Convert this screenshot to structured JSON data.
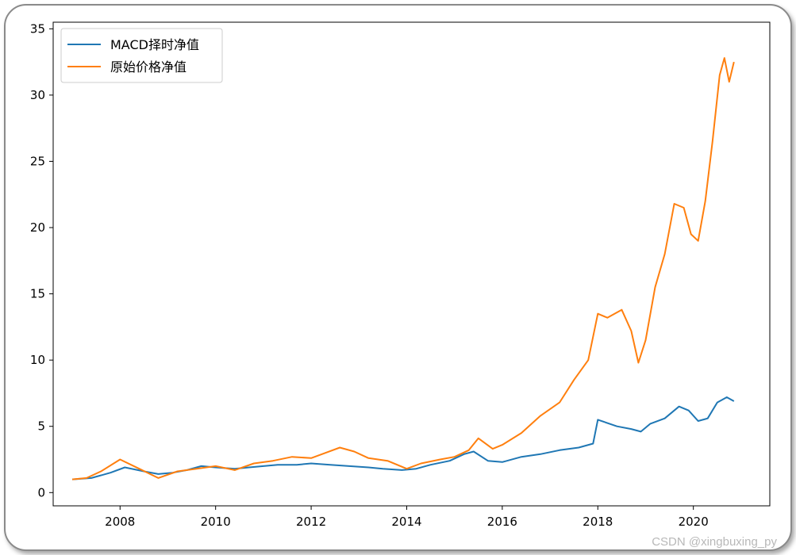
{
  "chart_data": {
    "type": "line",
    "title": "",
    "xlabel": "",
    "ylabel": "",
    "xlim": [
      2006.6,
      2021.6
    ],
    "ylim": [
      -1.0,
      35.5
    ],
    "xticks": [
      2008,
      2010,
      2012,
      2014,
      2016,
      2018,
      2020
    ],
    "xtick_labels": [
      "2008",
      "2010",
      "2012",
      "2014",
      "2016",
      "2018",
      "2020"
    ],
    "yticks": [
      0,
      5,
      10,
      15,
      20,
      25,
      30,
      35
    ],
    "ytick_labels": [
      "0",
      "5",
      "10",
      "15",
      "20",
      "25",
      "30",
      "35"
    ],
    "grid": false,
    "legend_position": "upper left",
    "series": [
      {
        "name": "MACD择时净值",
        "color": "#1f77b4",
        "x": [
          2007.0,
          2007.4,
          2007.8,
          2008.1,
          2008.5,
          2008.8,
          2009.1,
          2009.4,
          2009.7,
          2010.0,
          2010.4,
          2010.7,
          2011.0,
          2011.3,
          2011.7,
          2012.0,
          2012.4,
          2012.8,
          2013.2,
          2013.5,
          2013.9,
          2014.2,
          2014.5,
          2014.9,
          2015.2,
          2015.4,
          2015.7,
          2016.0,
          2016.4,
          2016.8,
          2017.2,
          2017.6,
          2017.9,
          2018.0,
          2018.4,
          2018.7,
          2018.9,
          2019.1,
          2019.4,
          2019.7,
          2019.9,
          2020.1,
          2020.3,
          2020.5,
          2020.7,
          2020.85
        ],
        "y": [
          1.0,
          1.1,
          1.5,
          1.9,
          1.6,
          1.4,
          1.5,
          1.7,
          2.0,
          1.9,
          1.8,
          1.9,
          2.0,
          2.1,
          2.1,
          2.2,
          2.1,
          2.0,
          1.9,
          1.8,
          1.7,
          1.8,
          2.1,
          2.4,
          2.9,
          3.1,
          2.4,
          2.3,
          2.7,
          2.9,
          3.2,
          3.4,
          3.7,
          5.5,
          5.0,
          4.8,
          4.6,
          5.2,
          5.6,
          6.5,
          6.2,
          5.4,
          5.6,
          6.8,
          7.2,
          6.9
        ]
      },
      {
        "name": "原始价格净值",
        "color": "#ff7f0e",
        "x": [
          2007.0,
          2007.3,
          2007.6,
          2008.0,
          2008.4,
          2008.8,
          2009.2,
          2009.6,
          2010.0,
          2010.4,
          2010.8,
          2011.2,
          2011.6,
          2012.0,
          2012.3,
          2012.6,
          2012.9,
          2013.2,
          2013.6,
          2014.0,
          2014.3,
          2014.7,
          2015.0,
          2015.3,
          2015.5,
          2015.8,
          2016.0,
          2016.4,
          2016.8,
          2017.2,
          2017.5,
          2017.8,
          2018.0,
          2018.2,
          2018.5,
          2018.7,
          2018.85,
          2019.0,
          2019.2,
          2019.4,
          2019.6,
          2019.8,
          2019.95,
          2020.1,
          2020.25,
          2020.4,
          2020.55,
          2020.65,
          2020.75,
          2020.85
        ],
        "y": [
          1.0,
          1.1,
          1.6,
          2.5,
          1.8,
          1.1,
          1.6,
          1.8,
          2.0,
          1.7,
          2.2,
          2.4,
          2.7,
          2.6,
          3.0,
          3.4,
          3.1,
          2.6,
          2.4,
          1.8,
          2.2,
          2.5,
          2.7,
          3.2,
          4.1,
          3.3,
          3.6,
          4.5,
          5.8,
          6.8,
          8.5,
          10.0,
          13.5,
          13.2,
          13.8,
          12.2,
          9.8,
          11.5,
          15.5,
          18.0,
          21.8,
          21.5,
          19.5,
          19.0,
          22.0,
          26.5,
          31.5,
          32.8,
          31.0,
          32.5
        ]
      }
    ]
  },
  "watermark": "CSDN @xingbuxing_py"
}
